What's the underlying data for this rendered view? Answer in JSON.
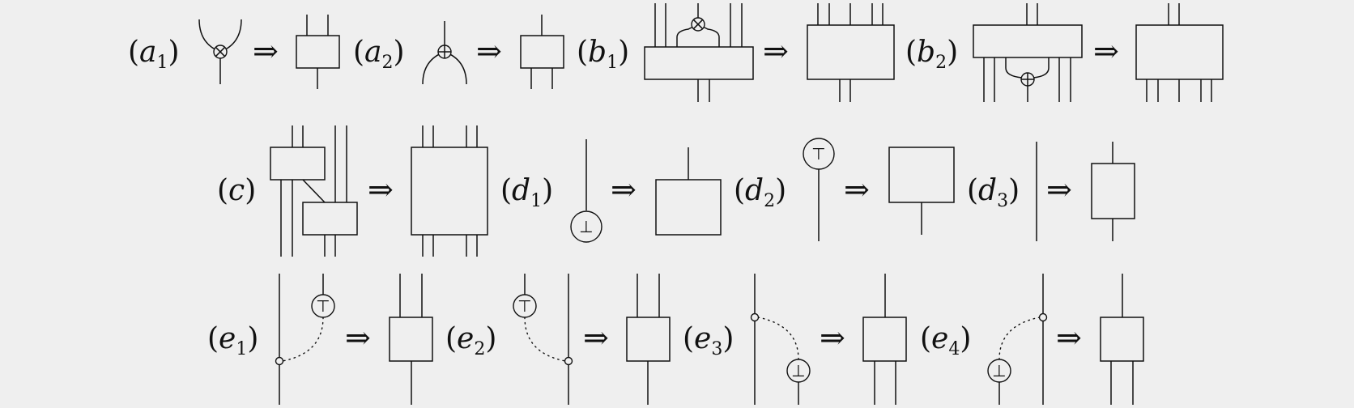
{
  "labels": {
    "a1": {
      "base": "a",
      "sub": "1"
    },
    "a2": {
      "base": "a",
      "sub": "2"
    },
    "b1": {
      "base": "b",
      "sub": "1"
    },
    "b2": {
      "base": "b",
      "sub": "2"
    },
    "c": {
      "base": "c",
      "sub": ""
    },
    "d1": {
      "base": "d",
      "sub": "1"
    },
    "d2": {
      "base": "d",
      "sub": "2"
    },
    "d3": {
      "base": "d",
      "sub": "3"
    },
    "e1": {
      "base": "e",
      "sub": "1"
    },
    "e2": {
      "base": "e",
      "sub": "2"
    },
    "e3": {
      "base": "e",
      "sub": "3"
    },
    "e4": {
      "base": "e",
      "sub": "4"
    }
  },
  "symbols": {
    "implies": "⇒",
    "open_paren": "(",
    "close_paren": ")",
    "top": "⊤",
    "bottom": "⊥"
  }
}
